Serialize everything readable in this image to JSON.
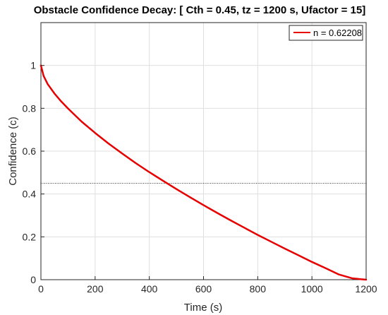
{
  "chart_data": {
    "type": "line",
    "title": "Obstacle Confidence Decay: [ Cth = 0.45, tz = 1200 s, Ufactor = 15]",
    "xlabel": "Time (s)",
    "ylabel": "Confidence (c)",
    "xlim": [
      0,
      1200
    ],
    "ylim": [
      0,
      1.2
    ],
    "xticks": [
      0,
      200,
      400,
      600,
      800,
      1000,
      1200
    ],
    "yticks": [
      0,
      0.2,
      0.4,
      0.6,
      0.8,
      1
    ],
    "grid": true,
    "legend_position": "top-right",
    "series": [
      {
        "name": "n = 0.62208",
        "color": "#e60000",
        "x": [
          0,
          10,
          25,
          50,
          75,
          100,
          150,
          200,
          250,
          300,
          350,
          400,
          450,
          500,
          550,
          600,
          650,
          700,
          750,
          800,
          850,
          900,
          950,
          1000,
          1050,
          1100,
          1150,
          1200
        ],
        "y": [
          1.0,
          0.951,
          0.913,
          0.869,
          0.832,
          0.799,
          0.738,
          0.685,
          0.635,
          0.589,
          0.544,
          0.502,
          0.462,
          0.423,
          0.385,
          0.348,
          0.312,
          0.277,
          0.243,
          0.209,
          0.177,
          0.145,
          0.114,
          0.083,
          0.054,
          0.024,
          0.006,
          0.0
        ]
      }
    ],
    "reference_line": {
      "y": 0.45,
      "color": "#333333",
      "style": "dotted"
    }
  }
}
